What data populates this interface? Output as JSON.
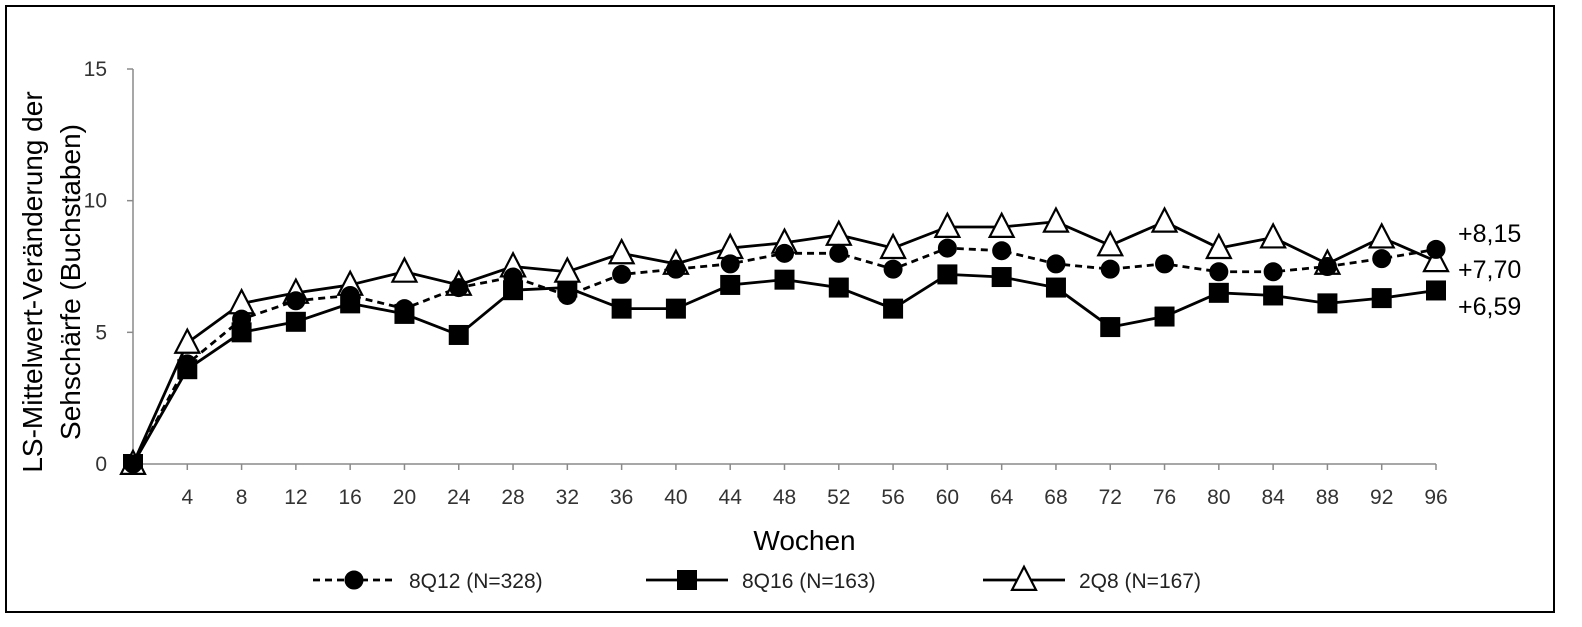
{
  "chart_data": {
    "type": "line",
    "title": "",
    "xlabel": "Wochen",
    "ylabel_line1": "LS-Mittelwert-Veränderung der",
    "ylabel_line2": "Sehschärfe (Buchstaben)",
    "ylim": [
      0,
      15
    ],
    "yticks": [
      0,
      5,
      10,
      15
    ],
    "x": [
      0,
      4,
      8,
      12,
      16,
      20,
      24,
      28,
      32,
      36,
      40,
      44,
      48,
      52,
      56,
      60,
      64,
      68,
      72,
      76,
      80,
      84,
      88,
      92,
      96
    ],
    "xtick_labels": [
      "4",
      "8",
      "12",
      "16",
      "20",
      "24",
      "28",
      "32",
      "36",
      "40",
      "44",
      "48",
      "52",
      "56",
      "60",
      "64",
      "68",
      "72",
      "76",
      "80",
      "84",
      "88",
      "92",
      "96"
    ],
    "grid": false,
    "legend_position": "bottom",
    "series": [
      {
        "name": "8Q12 (N=328)",
        "marker": "circle",
        "line": "dashed",
        "color": "#000000",
        "values": [
          0,
          3.8,
          5.5,
          6.2,
          6.4,
          5.9,
          6.7,
          7.1,
          6.4,
          7.2,
          7.4,
          7.6,
          8.0,
          8.0,
          7.4,
          8.2,
          8.1,
          7.6,
          7.4,
          7.6,
          7.3,
          7.3,
          7.5,
          7.8,
          8.15
        ]
      },
      {
        "name": "8Q16 (N=163)",
        "marker": "square",
        "line": "solid",
        "color": "#000000",
        "values": [
          0,
          3.6,
          5.0,
          5.4,
          6.1,
          5.7,
          4.9,
          6.6,
          6.7,
          5.9,
          5.9,
          6.8,
          7.0,
          6.7,
          5.9,
          7.2,
          7.1,
          6.7,
          5.2,
          5.6,
          6.5,
          6.4,
          6.1,
          6.3,
          6.59
        ]
      },
      {
        "name": "2Q8 (N=167)",
        "marker": "triangle",
        "line": "solid",
        "color": "#000000",
        "values": [
          0,
          4.6,
          6.1,
          6.5,
          6.8,
          7.3,
          6.8,
          7.5,
          7.3,
          8.0,
          7.6,
          8.2,
          8.4,
          8.7,
          8.2,
          9.0,
          9.0,
          9.2,
          8.3,
          9.2,
          8.2,
          8.6,
          7.6,
          8.6,
          7.7
        ]
      }
    ],
    "end_labels": [
      "+8,15",
      "+7,70",
      "+6,59"
    ]
  }
}
